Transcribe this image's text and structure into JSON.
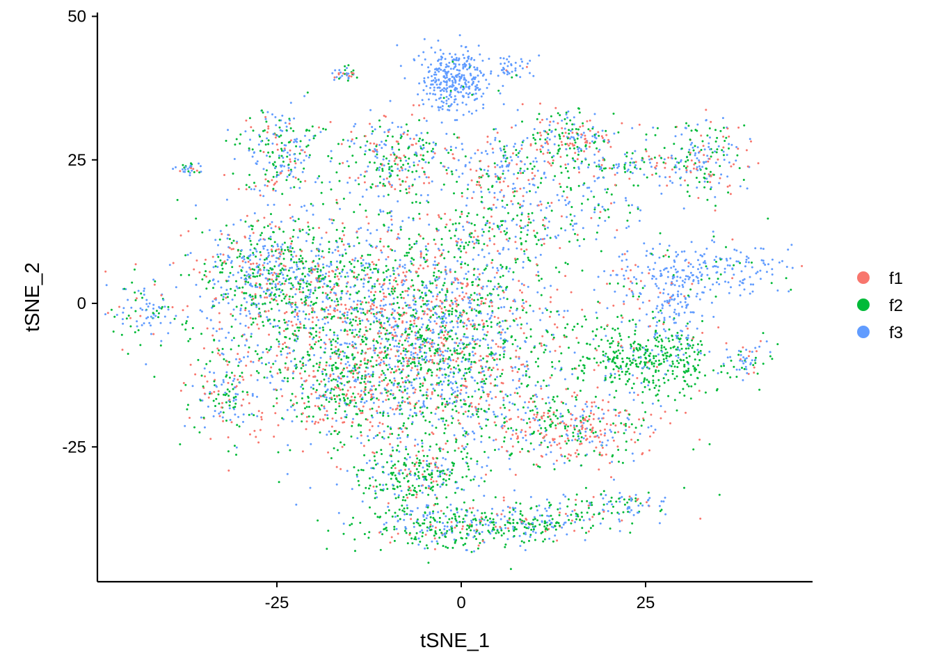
{
  "chart_data": {
    "type": "scatter",
    "title": "",
    "xlabel": "tSNE_1",
    "ylabel": "tSNE_2",
    "xlim": [
      -50,
      48
    ],
    "ylim": [
      -48,
      51
    ],
    "x_ticks": [
      -25,
      0,
      25
    ],
    "x_tick_labels": [
      "-25",
      "0",
      "25"
    ],
    "y_ticks": [
      -25,
      0,
      25,
      50
    ],
    "y_tick_labels": [
      "-25",
      "0",
      "25",
      "50"
    ],
    "grid": false,
    "legend_position": "right",
    "series": [
      {
        "name": "f1",
        "color": "#F8766D"
      },
      {
        "name": "f2",
        "color": "#00BA38"
      },
      {
        "name": "f3",
        "color": "#619CFF"
      }
    ],
    "clusters": [
      {
        "x": -10,
        "y": -5,
        "sx": 11,
        "sy": 10,
        "n": 2300,
        "w": [
          0.25,
          0.42,
          0.33
        ]
      },
      {
        "x": 0,
        "y": -8,
        "sx": 6,
        "sy": 10,
        "n": 700,
        "w": [
          0.25,
          0.4,
          0.35
        ]
      },
      {
        "x": -26,
        "y": 6,
        "sx": 5,
        "sy": 5,
        "n": 550,
        "w": [
          0.18,
          0.42,
          0.4
        ]
      },
      {
        "x": -16,
        "y": -15,
        "sx": 3,
        "sy": 3,
        "n": 180,
        "w": [
          0.45,
          0.4,
          0.15
        ]
      },
      {
        "x": -6,
        "y": -30,
        "sx": 4,
        "sy": 3,
        "n": 280,
        "w": [
          0.12,
          0.62,
          0.26
        ]
      },
      {
        "x": -2,
        "y": -39,
        "sx": 6,
        "sy": 2,
        "n": 280,
        "w": [
          0.12,
          0.55,
          0.33
        ]
      },
      {
        "x": 10,
        "y": -38,
        "sx": 6,
        "sy": 1.6,
        "n": 200,
        "w": [
          0.1,
          0.55,
          0.35
        ]
      },
      {
        "x": 21,
        "y": -35,
        "sx": 4,
        "sy": 1.3,
        "n": 100,
        "w": [
          0.1,
          0.45,
          0.45
        ]
      },
      {
        "x": 15,
        "y": -22,
        "sx": 6,
        "sy": 3,
        "n": 360,
        "w": [
          0.45,
          0.3,
          0.25
        ]
      },
      {
        "x": 25,
        "y": -10,
        "sx": 5.5,
        "sy": 3.5,
        "n": 420,
        "w": [
          0.04,
          0.88,
          0.08
        ]
      },
      {
        "x": -1,
        "y": 39,
        "sx": 2.5,
        "sy": 3,
        "n": 330,
        "w": [
          0.0,
          0.02,
          0.98
        ]
      },
      {
        "x": -9,
        "y": 25,
        "sx": 4,
        "sy": 3.5,
        "n": 280,
        "w": [
          0.25,
          0.4,
          0.35
        ]
      },
      {
        "x": 6,
        "y": 23,
        "sx": 3.5,
        "sy": 4,
        "n": 200,
        "w": [
          0.3,
          0.25,
          0.45
        ]
      },
      {
        "x": 15,
        "y": 29,
        "sx": 3.5,
        "sy": 2.5,
        "n": 200,
        "w": [
          0.28,
          0.42,
          0.3
        ]
      },
      {
        "x": 22,
        "y": 24,
        "sx": 6,
        "sy": 1.2,
        "n": 120,
        "w": [
          0.2,
          0.4,
          0.4
        ]
      },
      {
        "x": 33,
        "y": 25,
        "sx": 3,
        "sy": 3.5,
        "n": 180,
        "w": [
          0.22,
          0.32,
          0.46
        ]
      },
      {
        "x": -24,
        "y": 26,
        "sx": 3,
        "sy": 4,
        "n": 220,
        "w": [
          0.18,
          0.42,
          0.4
        ]
      },
      {
        "x": 33,
        "y": 6,
        "sx": 6,
        "sy": 2.5,
        "n": 200,
        "w": [
          0.04,
          0.12,
          0.84
        ]
      },
      {
        "x": 29,
        "y": -1,
        "sx": 2,
        "sy": 4,
        "n": 120,
        "w": [
          0.04,
          0.06,
          0.9
        ]
      },
      {
        "x": -32,
        "y": -15,
        "sx": 2.5,
        "sy": 4,
        "n": 140,
        "w": [
          0.28,
          0.37,
          0.35
        ]
      },
      {
        "x": -43,
        "y": -1,
        "sx": 3,
        "sy": 2.5,
        "n": 90,
        "w": [
          0.1,
          0.25,
          0.65
        ]
      },
      {
        "x": 17,
        "y": 17,
        "sx": 4,
        "sy": 2.5,
        "n": 90,
        "w": [
          0.12,
          0.38,
          0.5
        ]
      },
      {
        "x": 23,
        "y": 2,
        "sx": 3,
        "sy": 3,
        "n": 60,
        "w": [
          0.3,
          0.2,
          0.5
        ]
      },
      {
        "x": 39,
        "y": -10,
        "sx": 1.4,
        "sy": 1.8,
        "n": 50,
        "w": [
          0.2,
          0.3,
          0.5
        ]
      },
      {
        "x": -16,
        "y": 40,
        "sx": 1,
        "sy": 0.6,
        "n": 35,
        "w": [
          0.15,
          0.35,
          0.5
        ]
      },
      {
        "x": -37,
        "y": 23.5,
        "sx": 1,
        "sy": 0.7,
        "n": 30,
        "w": [
          0.1,
          0.2,
          0.7
        ]
      },
      {
        "x": 7,
        "y": 41,
        "sx": 1.2,
        "sy": 1.2,
        "n": 40,
        "w": [
          0.05,
          0.1,
          0.85
        ]
      },
      {
        "x": 5,
        "y": 13,
        "sx": 5,
        "sy": 2.5,
        "n": 120,
        "w": [
          0.25,
          0.45,
          0.3
        ]
      }
    ]
  }
}
